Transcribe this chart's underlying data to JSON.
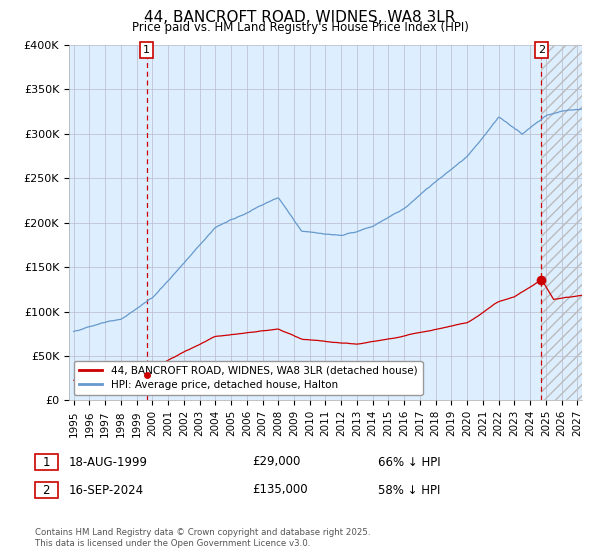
{
  "title": "44, BANCROFT ROAD, WIDNES, WA8 3LR",
  "subtitle": "Price paid vs. HM Land Registry's House Price Index (HPI)",
  "legend_red": "44, BANCROFT ROAD, WIDNES, WA8 3LR (detached house)",
  "legend_blue": "HPI: Average price, detached house, Halton",
  "annotation1_label": "1",
  "annotation1_date": "18-AUG-1999",
  "annotation1_price": "£29,000",
  "annotation1_hpi": "66% ↓ HPI",
  "annotation2_label": "2",
  "annotation2_date": "16-SEP-2024",
  "annotation2_price": "£135,000",
  "annotation2_hpi": "58% ↓ HPI",
  "footnote": "Contains HM Land Registry data © Crown copyright and database right 2025.\nThis data is licensed under the Open Government Licence v3.0.",
  "red_color": "#cc0000",
  "blue_color": "#6699cc",
  "bg_plot_color": "#ddeeff",
  "vline_color": "#cc0000",
  "background_color": "#ffffff",
  "grid_color": "#bbbbcc",
  "ylim_min": 0,
  "ylim_max": 400000
}
